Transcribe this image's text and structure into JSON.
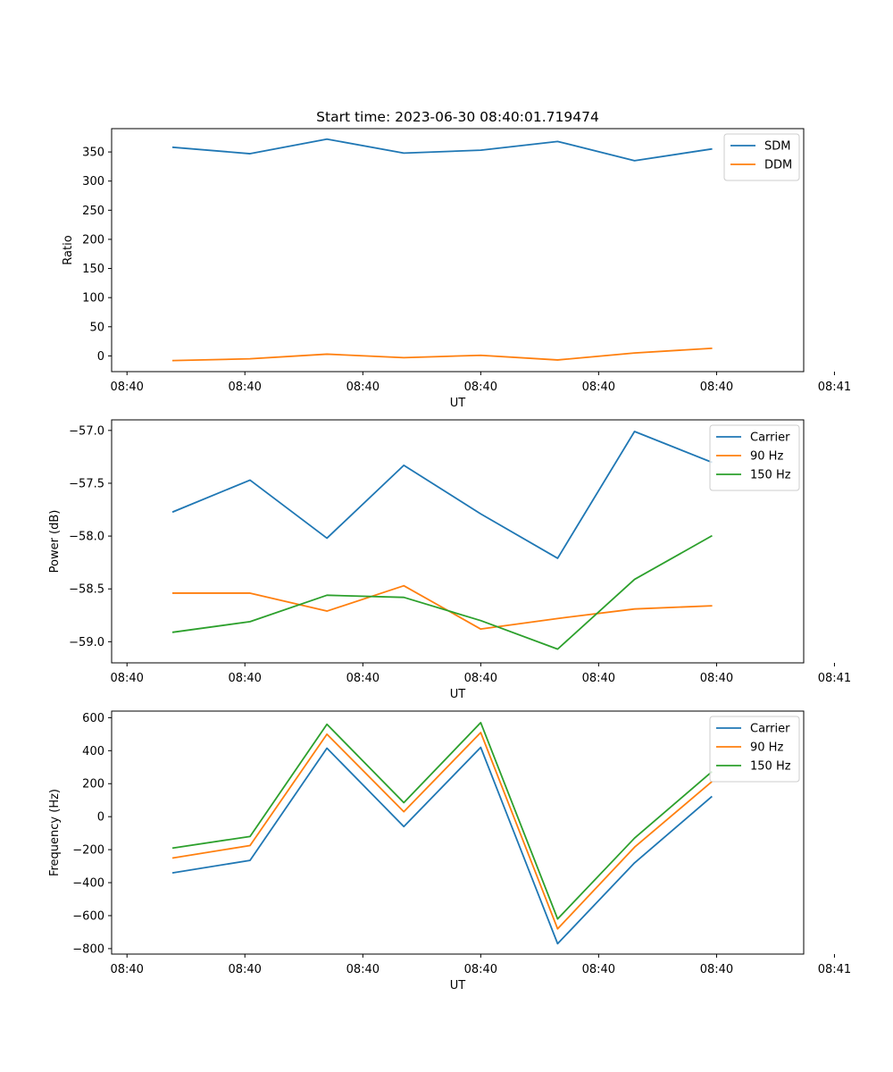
{
  "figure_title": "Start time: 2023-06-30 08:40:01.719474",
  "chart_data": [
    {
      "type": "line",
      "title": "Start time: 2023-06-30 08:40:01.719474",
      "xlabel": "UT",
      "ylabel": "Ratio",
      "xtick_labels": [
        "08:40",
        "08:40",
        "08:40",
        "08:40",
        "08:40",
        "08:40",
        "08:41"
      ],
      "x": [
        1,
        2,
        3,
        4,
        5,
        6,
        7,
        8
      ],
      "xlim": [
        0.2,
        9.2
      ],
      "ylim": [
        -27,
        390
      ],
      "yticks": [
        0,
        50,
        100,
        150,
        200,
        250,
        300,
        350
      ],
      "ytick_labels": [
        "0",
        "50",
        "100",
        "150",
        "200",
        "250",
        "300",
        "350"
      ],
      "legend": "top-right",
      "series": [
        {
          "name": "SDM",
          "color": "#1f77b4",
          "values": [
            358,
            347,
            372,
            348,
            353,
            368,
            335,
            355
          ]
        },
        {
          "name": "DDM",
          "color": "#ff7f0e",
          "values": [
            -8,
            -5,
            3,
            -3,
            1,
            -7,
            5,
            13
          ]
        }
      ]
    },
    {
      "type": "line",
      "title": "",
      "xlabel": "UT",
      "ylabel": "Power (dB)",
      "xtick_labels": [
        "08:40",
        "08:40",
        "08:40",
        "08:40",
        "08:40",
        "08:40",
        "08:41"
      ],
      "x": [
        1,
        2,
        3,
        4,
        5,
        6,
        7,
        8
      ],
      "xlim": [
        0.2,
        9.2
      ],
      "ylim": [
        -59.2,
        -56.9
      ],
      "yticks": [
        -57.0,
        -57.5,
        -58.0,
        -58.5,
        -59.0
      ],
      "ytick_labels": [
        "−57.0",
        "−57.5",
        "−58.0",
        "−58.5",
        "−59.0"
      ],
      "legend": "top-right",
      "series": [
        {
          "name": "Carrier",
          "color": "#1f77b4",
          "values": [
            -57.77,
            -57.47,
            -58.02,
            -57.33,
            -57.79,
            -58.21,
            -57.01,
            -57.3
          ]
        },
        {
          "name": "90 Hz",
          "color": "#ff7f0e",
          "values": [
            -58.54,
            -58.54,
            -58.71,
            -58.47,
            -58.88,
            -58.78,
            -58.69,
            -58.66
          ]
        },
        {
          "name": "150 Hz",
          "color": "#2ca02c",
          "values": [
            -58.91,
            -58.81,
            -58.56,
            -58.58,
            -58.8,
            -59.07,
            -58.41,
            -58.0
          ]
        }
      ]
    },
    {
      "type": "line",
      "title": "",
      "xlabel": "UT",
      "ylabel": "Frequency (Hz)",
      "xtick_labels": [
        "08:40",
        "08:40",
        "08:40",
        "08:40",
        "08:40",
        "08:40",
        "08:41"
      ],
      "x": [
        1,
        2,
        3,
        4,
        5,
        6,
        7,
        8
      ],
      "xlim": [
        0.2,
        9.2
      ],
      "ylim": [
        -833,
        640
      ],
      "yticks": [
        600,
        400,
        200,
        0,
        -200,
        -400,
        -600,
        -800
      ],
      "ytick_labels": [
        "600",
        "400",
        "200",
        "0",
        "−200",
        "−400",
        "−600",
        "−800"
      ],
      "legend": "top-right",
      "series": [
        {
          "name": "Carrier",
          "color": "#1f77b4",
          "values": [
            -340,
            -265,
            415,
            -60,
            420,
            -770,
            -280,
            120
          ]
        },
        {
          "name": "90 Hz",
          "color": "#ff7f0e",
          "values": [
            -250,
            -175,
            500,
            30,
            510,
            -680,
            -185,
            210
          ]
        },
        {
          "name": "150 Hz",
          "color": "#2ca02c",
          "values": [
            -190,
            -120,
            560,
            85,
            570,
            -620,
            -130,
            270
          ]
        }
      ]
    }
  ]
}
